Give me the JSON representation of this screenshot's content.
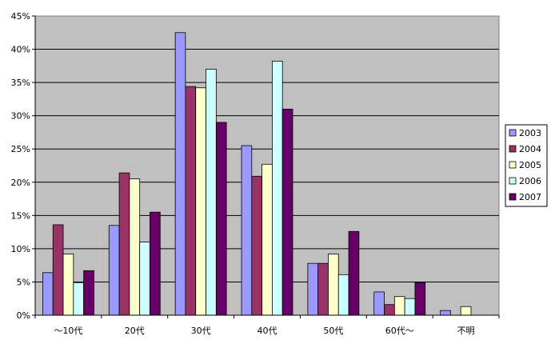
{
  "chart_data": {
    "type": "bar",
    "categories": [
      "～10代",
      "20代",
      "30代",
      "40代",
      "50代",
      "60代～",
      "不明"
    ],
    "series": [
      {
        "name": "2003",
        "color": "#9999ff",
        "values": [
          6.4,
          13.5,
          42.5,
          25.5,
          7.8,
          3.5,
          0.7
        ]
      },
      {
        "name": "2004",
        "color": "#993366",
        "values": [
          13.6,
          21.4,
          34.4,
          20.9,
          7.8,
          1.6,
          0
        ]
      },
      {
        "name": "2005",
        "color": "#ffffcc",
        "values": [
          9.2,
          20.5,
          34.2,
          22.7,
          9.2,
          2.8,
          1.3
        ]
      },
      {
        "name": "2006",
        "color": "#ccffff",
        "values": [
          4.9,
          11.0,
          37.0,
          38.2,
          6.1,
          2.5,
          0
        ]
      },
      {
        "name": "2007",
        "color": "#660066",
        "values": [
          6.7,
          15.5,
          29.0,
          31.0,
          12.6,
          4.9,
          0
        ]
      }
    ],
    "ylim": [
      0,
      45
    ],
    "yticks": [
      "0%",
      "5%",
      "10%",
      "15%",
      "20%",
      "25%",
      "30%",
      "35%",
      "40%",
      "45%"
    ],
    "grid": true,
    "legend": "right",
    "plot_background": "#c0c0c0"
  }
}
